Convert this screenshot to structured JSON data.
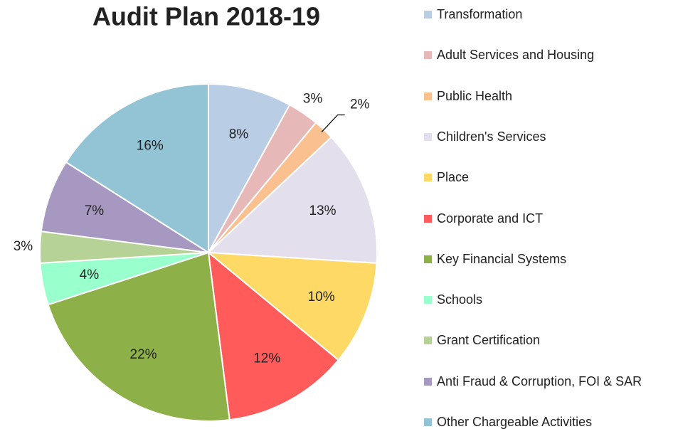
{
  "chart_data": {
    "type": "pie",
    "title": "Audit Plan 2018-19",
    "categories": [
      "Transformation",
      "Adult Services and Housing",
      "Public Health",
      "Children's Services",
      "Place",
      "Corporate and ICT",
      "Key Financial Systems",
      "Schools",
      "Grant Certification",
      "Anti Fraud & Corruption, FOI & SAR",
      "Other Chargeable Activities"
    ],
    "values": [
      8,
      3,
      2,
      13,
      10,
      12,
      22,
      4,
      3,
      7,
      16
    ],
    "value_labels": [
      "8%",
      "3%",
      "2%",
      "13%",
      "10%",
      "12%",
      "22%",
      "4%",
      "3%",
      "7%",
      "16%"
    ],
    "colors": [
      "#b9cde5",
      "#e6b9b8",
      "#fac090",
      "#e4dfec",
      "#ffd966",
      "#ff5b5b",
      "#8db048",
      "#99ffcc",
      "#b6d296",
      "#a698c0",
      "#92c4d6"
    ],
    "legend": "right"
  }
}
